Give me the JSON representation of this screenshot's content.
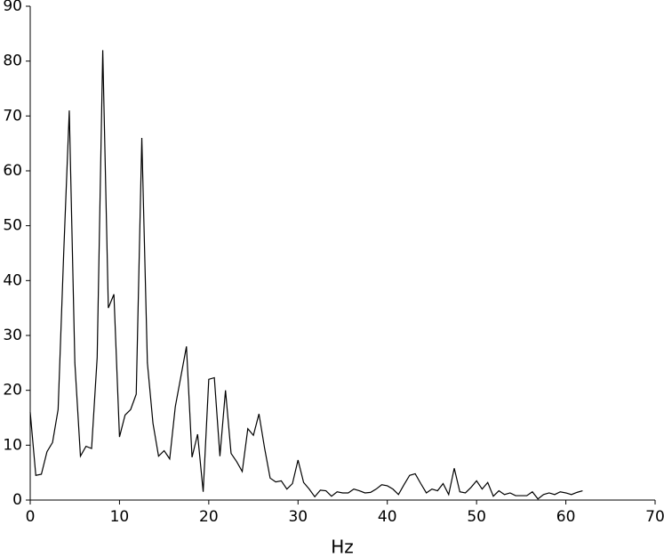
{
  "chart_data": {
    "type": "line",
    "x_label": "Hz",
    "x": [
      0,
      0.625,
      1.25,
      1.875,
      2.5,
      3.125,
      3.75,
      4.375,
      5,
      5.625,
      6.25,
      6.875,
      7.5,
      8.125,
      8.75,
      9.375,
      10,
      10.625,
      11.25,
      11.875,
      12.5,
      13.125,
      13.75,
      14.375,
      15,
      15.625,
      16.25,
      16.875,
      17.5,
      18.125,
      18.75,
      19.375,
      20,
      20.625,
      21.25,
      21.875,
      22.5,
      23.125,
      23.75,
      24.375,
      25,
      25.625,
      26.25,
      26.875,
      27.5,
      28.125,
      28.75,
      29.375,
      30,
      30.625,
      31.25,
      31.875,
      32.5,
      33.125,
      33.75,
      34.375,
      35,
      35.625,
      36.25,
      36.875,
      37.5,
      38.125,
      38.75,
      39.375,
      40,
      40.625,
      41.25,
      41.875,
      42.5,
      43.125,
      43.75,
      44.375,
      45,
      45.625,
      46.25,
      46.875,
      47.5,
      48.125,
      48.75,
      49.375,
      50,
      50.625,
      51.25,
      51.875,
      52.5,
      53.125,
      53.75,
      54.375,
      55,
      55.625,
      56.25,
      56.875,
      57.5,
      58.125,
      58.75,
      59.375,
      60,
      60.625,
      61.25,
      61.875
    ],
    "series": [
      {
        "color": "#000000",
        "values": [
          16,
          4.5,
          4.7,
          8.8,
          10.5,
          16.5,
          45,
          71,
          25,
          8,
          9.8,
          9.4,
          26,
          82,
          35,
          37.5,
          11.5,
          15.5,
          16.5,
          19.3,
          66,
          25,
          14,
          8,
          9,
          7.5,
          17,
          22.5,
          28,
          7.8,
          12,
          1.5,
          22,
          22.3,
          8,
          20,
          8.5,
          7,
          5.2,
          13,
          11.8,
          15.7,
          9.5,
          4,
          3.3,
          3.5,
          2,
          3,
          7.3,
          3.2,
          2,
          0.6,
          1.8,
          1.7,
          0.7,
          1.5,
          1.3,
          1.3,
          2,
          1.7,
          1.3,
          1.4,
          2,
          2.8,
          2.6,
          2,
          1,
          2.8,
          4.5,
          4.8,
          3,
          1.3,
          2,
          1.7,
          3,
          1,
          5.8,
          1.5,
          1.3,
          2.3,
          3.5,
          2,
          3.2,
          0.7,
          1.7,
          1,
          1.3,
          0.8,
          0.8,
          0.8,
          1.5,
          0.2,
          1,
          1.3,
          1,
          1.5,
          1.3,
          1,
          1.4,
          1.7
        ]
      }
    ],
    "xlim": [
      0,
      70
    ],
    "xticks": [
      0,
      10,
      20,
      30,
      40,
      50,
      60,
      70
    ],
    "ylim": [
      0,
      90
    ],
    "yticks": [
      0,
      10,
      20,
      30,
      40,
      50,
      60,
      70,
      80,
      90
    ]
  }
}
